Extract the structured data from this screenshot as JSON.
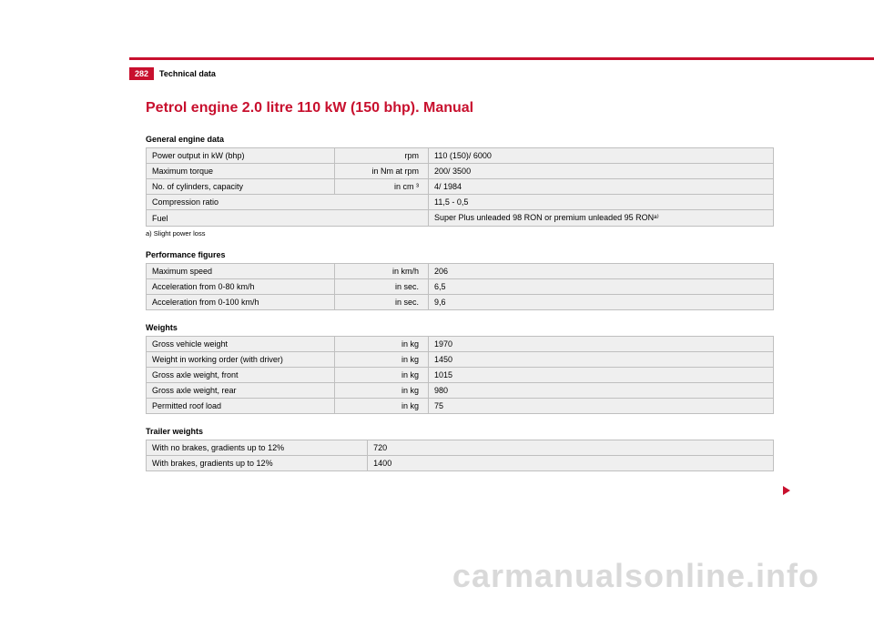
{
  "header": {
    "page_number": "282",
    "section": "Technical data"
  },
  "title": "Petrol engine 2.0 litre 110 kW (150 bhp). Manual",
  "tables": {
    "general": {
      "heading": "General engine data",
      "rows": [
        {
          "label": "Power output in kW (bhp)",
          "unit": "rpm",
          "value": "110 (150)/ 6000"
        },
        {
          "label": "Maximum torque",
          "unit": "in Nm at rpm",
          "value": "200/ 3500"
        },
        {
          "label": "No. of cylinders, capacity",
          "unit": "in cm ³",
          "value": "4/ 1984"
        },
        {
          "label": "Compression ratio",
          "unit": "",
          "value": "11,5 - 0,5"
        },
        {
          "label": "Fuel",
          "unit": "",
          "value": "Super Plus unleaded 98 RON or premium unleaded 95 RONᵃ⁾"
        }
      ],
      "footnote": "a)   Slight power loss"
    },
    "performance": {
      "heading": "Performance figures",
      "rows": [
        {
          "label": "Maximum speed",
          "unit": "in km/h",
          "value": "206"
        },
        {
          "label": "Acceleration from 0-80 km/h",
          "unit": "in sec.",
          "value": "6,5"
        },
        {
          "label": "Acceleration from 0-100 km/h",
          "unit": "in sec.",
          "value": "9,6"
        }
      ]
    },
    "weights": {
      "heading": "Weights",
      "rows": [
        {
          "label": "Gross vehicle weight",
          "unit": "in kg",
          "value": "1970"
        },
        {
          "label": "Weight in working order (with driver)",
          "unit": "in kg",
          "value": "1450"
        },
        {
          "label": "Gross axle weight, front",
          "unit": "in kg",
          "value": "1015"
        },
        {
          "label": "Gross axle weight, rear",
          "unit": "in kg",
          "value": "980"
        },
        {
          "label": "Permitted roof load",
          "unit": "in kg",
          "value": "75"
        }
      ]
    },
    "trailer": {
      "heading": "Trailer weights",
      "rows": [
        {
          "label": "With no brakes, gradients up to 12%",
          "unit": "",
          "value": "720"
        },
        {
          "label": "With brakes, gradients up to 12%",
          "unit": "",
          "value": "1400"
        }
      ]
    }
  },
  "watermark": "carmanualsonline.info",
  "colors": {
    "brand_red": "#c8102e",
    "row_bg": "#efefef",
    "border": "#bfbfbf",
    "watermark": "#d9d9d9"
  }
}
